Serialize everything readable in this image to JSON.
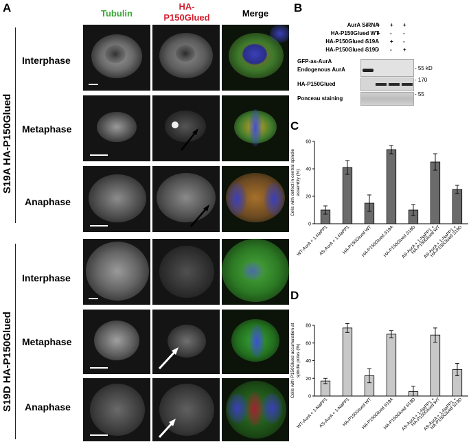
{
  "panelA": {
    "letter": "A",
    "columns": {
      "tubulin": "Tubulin",
      "ha_line1": "HA-",
      "ha_line2": "P150Glued",
      "merge": "Merge"
    },
    "group1_label": "S19A HA-P150Glued",
    "group2_label": "S19D HA-P150Glued",
    "rows": [
      "Interphase",
      "Metaphase",
      "Anaphase"
    ],
    "colors": {
      "tubulin": "#3aa535",
      "ha": "#d2202f"
    }
  },
  "panelB": {
    "letter": "B",
    "conditions": [
      {
        "label": "AurA SiRNA",
        "marks": [
          "-",
          "+",
          "+",
          "+"
        ]
      },
      {
        "label": "HA-P150Glued WT",
        "marks": [
          "-",
          "+",
          "-",
          "-"
        ]
      },
      {
        "label": "HA-P150Glued S19A",
        "marks": [
          "-",
          "-",
          "+",
          "-"
        ]
      },
      {
        "label": "HA-P150Glued S19D",
        "marks": [
          "-",
          "-",
          "-",
          "+"
        ]
      }
    ],
    "blot_labels": [
      "GFP-as-AurA",
      "Endogenous AurA",
      "HA-P150Glued",
      "Ponceau staining"
    ],
    "mw": [
      "- 55 kD",
      "- 170",
      "- 55"
    ]
  },
  "chart_data": [
    {
      "panel": "C",
      "type": "bar",
      "ylabel": "Cells with defect in central spindle assembly (%)",
      "ylim": [
        0,
        60
      ],
      "yticks": [
        0,
        20,
        40,
        60
      ],
      "categories": [
        "WT-AurA + 1-NaPP1",
        "AS-AurA + 1-NaPP1",
        "HA-P150Glued WT",
        "HA-P150Glued S19A",
        "HA-P150Glued S19D",
        "AS-AurA + 1-NaPP1 + HA-P150Glued WT",
        "AS-AurA + 1-NaPP1 + HA-P150Glued S19D"
      ],
      "category_lines": [
        [
          "WT-AurA + 1-NaPP1"
        ],
        [
          "AS-AurA + 1-NaPP1"
        ],
        [
          "HA-P150Glued WT"
        ],
        [
          "HA-P150Glued S19A"
        ],
        [
          "HA-P150Glued S19D"
        ],
        [
          "AS-AurA + 1-NaPP1 +",
          "HA-P150Glued WT"
        ],
        [
          "AS-AurA + 1-NaPP1 +",
          "HA-P150Glued S19D"
        ]
      ],
      "values": [
        10,
        41,
        15,
        54,
        10,
        45,
        25
      ],
      "errors": [
        3,
        5,
        6,
        3,
        4,
        6,
        3
      ],
      "bar_color": "#6b6b6b"
    },
    {
      "panel": "D",
      "type": "bar",
      "ylabel": "Cells with P150Glued accumulation at spindle poles (%)",
      "ylim": [
        0,
        80
      ],
      "yticks": [
        0,
        20,
        40,
        60,
        80
      ],
      "categories": [
        "WT-AurA + 1-NaPP1",
        "AS-AurA + 1-NaPP1",
        "HA-P150Glued WT",
        "HA-P150Glued S19A",
        "HA-P150Glued S19D",
        "AS-AurA + 1-NaPP1 + HA-P150Glued WT",
        "AS-AurA + 1-NaPP1 + HA-P150Glued S19D"
      ],
      "category_lines": [
        [
          "WT-AurA + 1-NaPP1"
        ],
        [
          "AS-AurA + 1-NaPP1"
        ],
        [
          "HA-P150Glued WT"
        ],
        [
          "HA-P150Glued S19A"
        ],
        [
          "HA-P150Glued S19D"
        ],
        [
          "AS-AurA + 1-NaPP1 +",
          "HA-P150Glued WT"
        ],
        [
          "AS-AurA + 1-NaPP1 +",
          "HA-P150Glued S19D"
        ]
      ],
      "values": [
        17,
        77,
        23,
        70,
        5,
        69,
        30
      ],
      "errors": [
        3,
        5,
        8,
        4,
        6,
        8,
        7
      ],
      "bar_color": "#c8c8c8"
    }
  ]
}
